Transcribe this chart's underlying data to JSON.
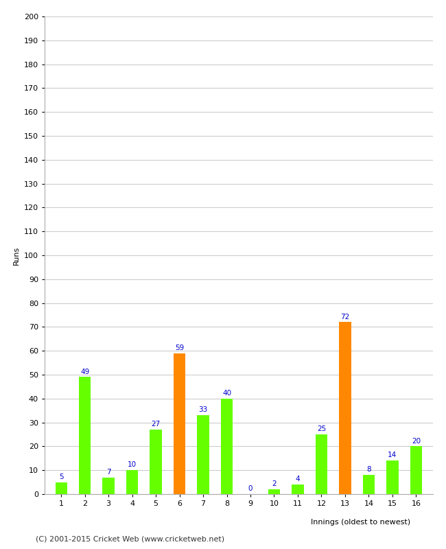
{
  "xlabel": "Innings (oldest to newest)",
  "ylabel": "Runs",
  "categories": [
    1,
    2,
    3,
    4,
    5,
    6,
    7,
    8,
    9,
    10,
    11,
    12,
    13,
    14,
    15,
    16
  ],
  "values": [
    5,
    49,
    7,
    10,
    27,
    59,
    33,
    40,
    0,
    2,
    4,
    25,
    72,
    8,
    14,
    20
  ],
  "bar_colors": [
    "#66ff00",
    "#66ff00",
    "#66ff00",
    "#66ff00",
    "#66ff00",
    "#ff8800",
    "#66ff00",
    "#66ff00",
    "#66ff00",
    "#66ff00",
    "#66ff00",
    "#66ff00",
    "#ff8800",
    "#66ff00",
    "#66ff00",
    "#66ff00"
  ],
  "ylim": [
    0,
    200
  ],
  "yticks": [
    0,
    10,
    20,
    30,
    40,
    50,
    60,
    70,
    80,
    90,
    100,
    110,
    120,
    130,
    140,
    150,
    160,
    170,
    180,
    190,
    200
  ],
  "label_color": "#0000cc",
  "label_fontsize": 7.5,
  "axis_label_fontsize": 8,
  "tick_fontsize": 8,
  "footer": "(C) 2001-2015 Cricket Web (www.cricketweb.net)",
  "footer_fontsize": 8,
  "background_color": "#ffffff",
  "grid_color": "#cccccc",
  "bar_width": 0.5
}
